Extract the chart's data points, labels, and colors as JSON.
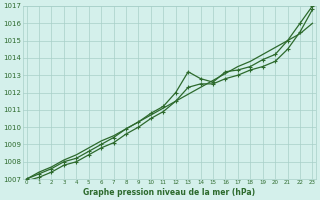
{
  "title": "Graphe pression niveau de la mer (hPa)",
  "x_values": [
    0,
    1,
    2,
    3,
    4,
    5,
    6,
    7,
    8,
    9,
    10,
    11,
    12,
    13,
    14,
    15,
    16,
    17,
    18,
    19,
    20,
    21,
    22,
    23
  ],
  "line1": [
    1007.0,
    1007.4,
    1007.7,
    1008.1,
    1008.4,
    1008.8,
    1009.2,
    1009.5,
    1009.9,
    1010.3,
    1010.7,
    1011.1,
    1011.5,
    1011.9,
    1012.3,
    1012.7,
    1013.1,
    1013.5,
    1013.8,
    1014.2,
    1014.6,
    1015.0,
    1015.4,
    1016.0
  ],
  "line2": [
    1007.0,
    1007.3,
    1007.6,
    1008.0,
    1008.2,
    1008.6,
    1009.0,
    1009.4,
    1009.9,
    1010.3,
    1010.8,
    1011.2,
    1012.0,
    1013.2,
    1012.8,
    1012.6,
    1013.2,
    1013.3,
    1013.5,
    1013.9,
    1014.2,
    1015.0,
    1016.0,
    1017.0
  ],
  "line3": [
    1006.9,
    1007.1,
    1007.4,
    1007.8,
    1008.0,
    1008.4,
    1008.8,
    1009.1,
    1009.6,
    1010.0,
    1010.5,
    1010.9,
    1011.5,
    1012.3,
    1012.5,
    1012.5,
    1012.8,
    1013.0,
    1013.3,
    1013.5,
    1013.8,
    1014.5,
    1015.5,
    1016.8
  ],
  "line_color": "#2d6a2d",
  "bg_color": "#d4f0eb",
  "grid_color": "#a8cfc8",
  "text_color": "#2d6a2d",
  "ylim": [
    1007,
    1017
  ],
  "yticks": [
    1007,
    1008,
    1009,
    1010,
    1011,
    1012,
    1013,
    1014,
    1015,
    1016,
    1017
  ],
  "figsize": [
    3.2,
    2.0
  ],
  "dpi": 100
}
